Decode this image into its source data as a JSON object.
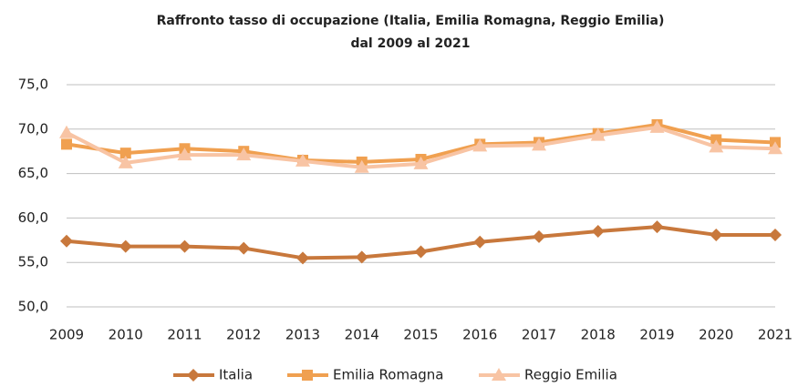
{
  "chart_data": {
    "type": "line",
    "title": "Raffronto tasso di occupazione (Italia, Emilia Romagna, Reggio Emilia)",
    "subtitle": "dal 2009 al 2021",
    "categories": [
      "2009",
      "2010",
      "2011",
      "2012",
      "2013",
      "2014",
      "2015",
      "2016",
      "2017",
      "2018",
      "2019",
      "2020",
      "2021"
    ],
    "series": [
      {
        "name": "Italia",
        "color": "#c8783c",
        "marker": "diamond",
        "values": [
          57.4,
          56.8,
          56.8,
          56.6,
          55.5,
          55.6,
          56.2,
          57.3,
          57.9,
          58.5,
          59.0,
          58.1,
          58.1
        ]
      },
      {
        "name": "Emilia Romagna",
        "color": "#f0a050",
        "marker": "square",
        "values": [
          68.3,
          67.3,
          67.8,
          67.5,
          66.5,
          66.3,
          66.6,
          68.3,
          68.5,
          69.5,
          70.5,
          68.8,
          68.5
        ]
      },
      {
        "name": "Reggio Emilia",
        "color": "#f8c4a4",
        "marker": "triangle",
        "values": [
          69.6,
          66.2,
          67.1,
          67.1,
          66.4,
          65.7,
          66.1,
          68.1,
          68.2,
          69.3,
          70.2,
          68.0,
          67.8
        ]
      }
    ],
    "ylim": [
      50,
      75
    ],
    "yticks": [
      {
        "value": 50,
        "label": "50,0"
      },
      {
        "value": 55,
        "label": "55,0"
      },
      {
        "value": 60,
        "label": "60,0"
      },
      {
        "value": 65,
        "label": "65,0"
      },
      {
        "value": 70,
        "label": "70,0"
      },
      {
        "value": 75,
        "label": "75,0"
      }
    ],
    "grid": true,
    "legend": "bottom"
  }
}
